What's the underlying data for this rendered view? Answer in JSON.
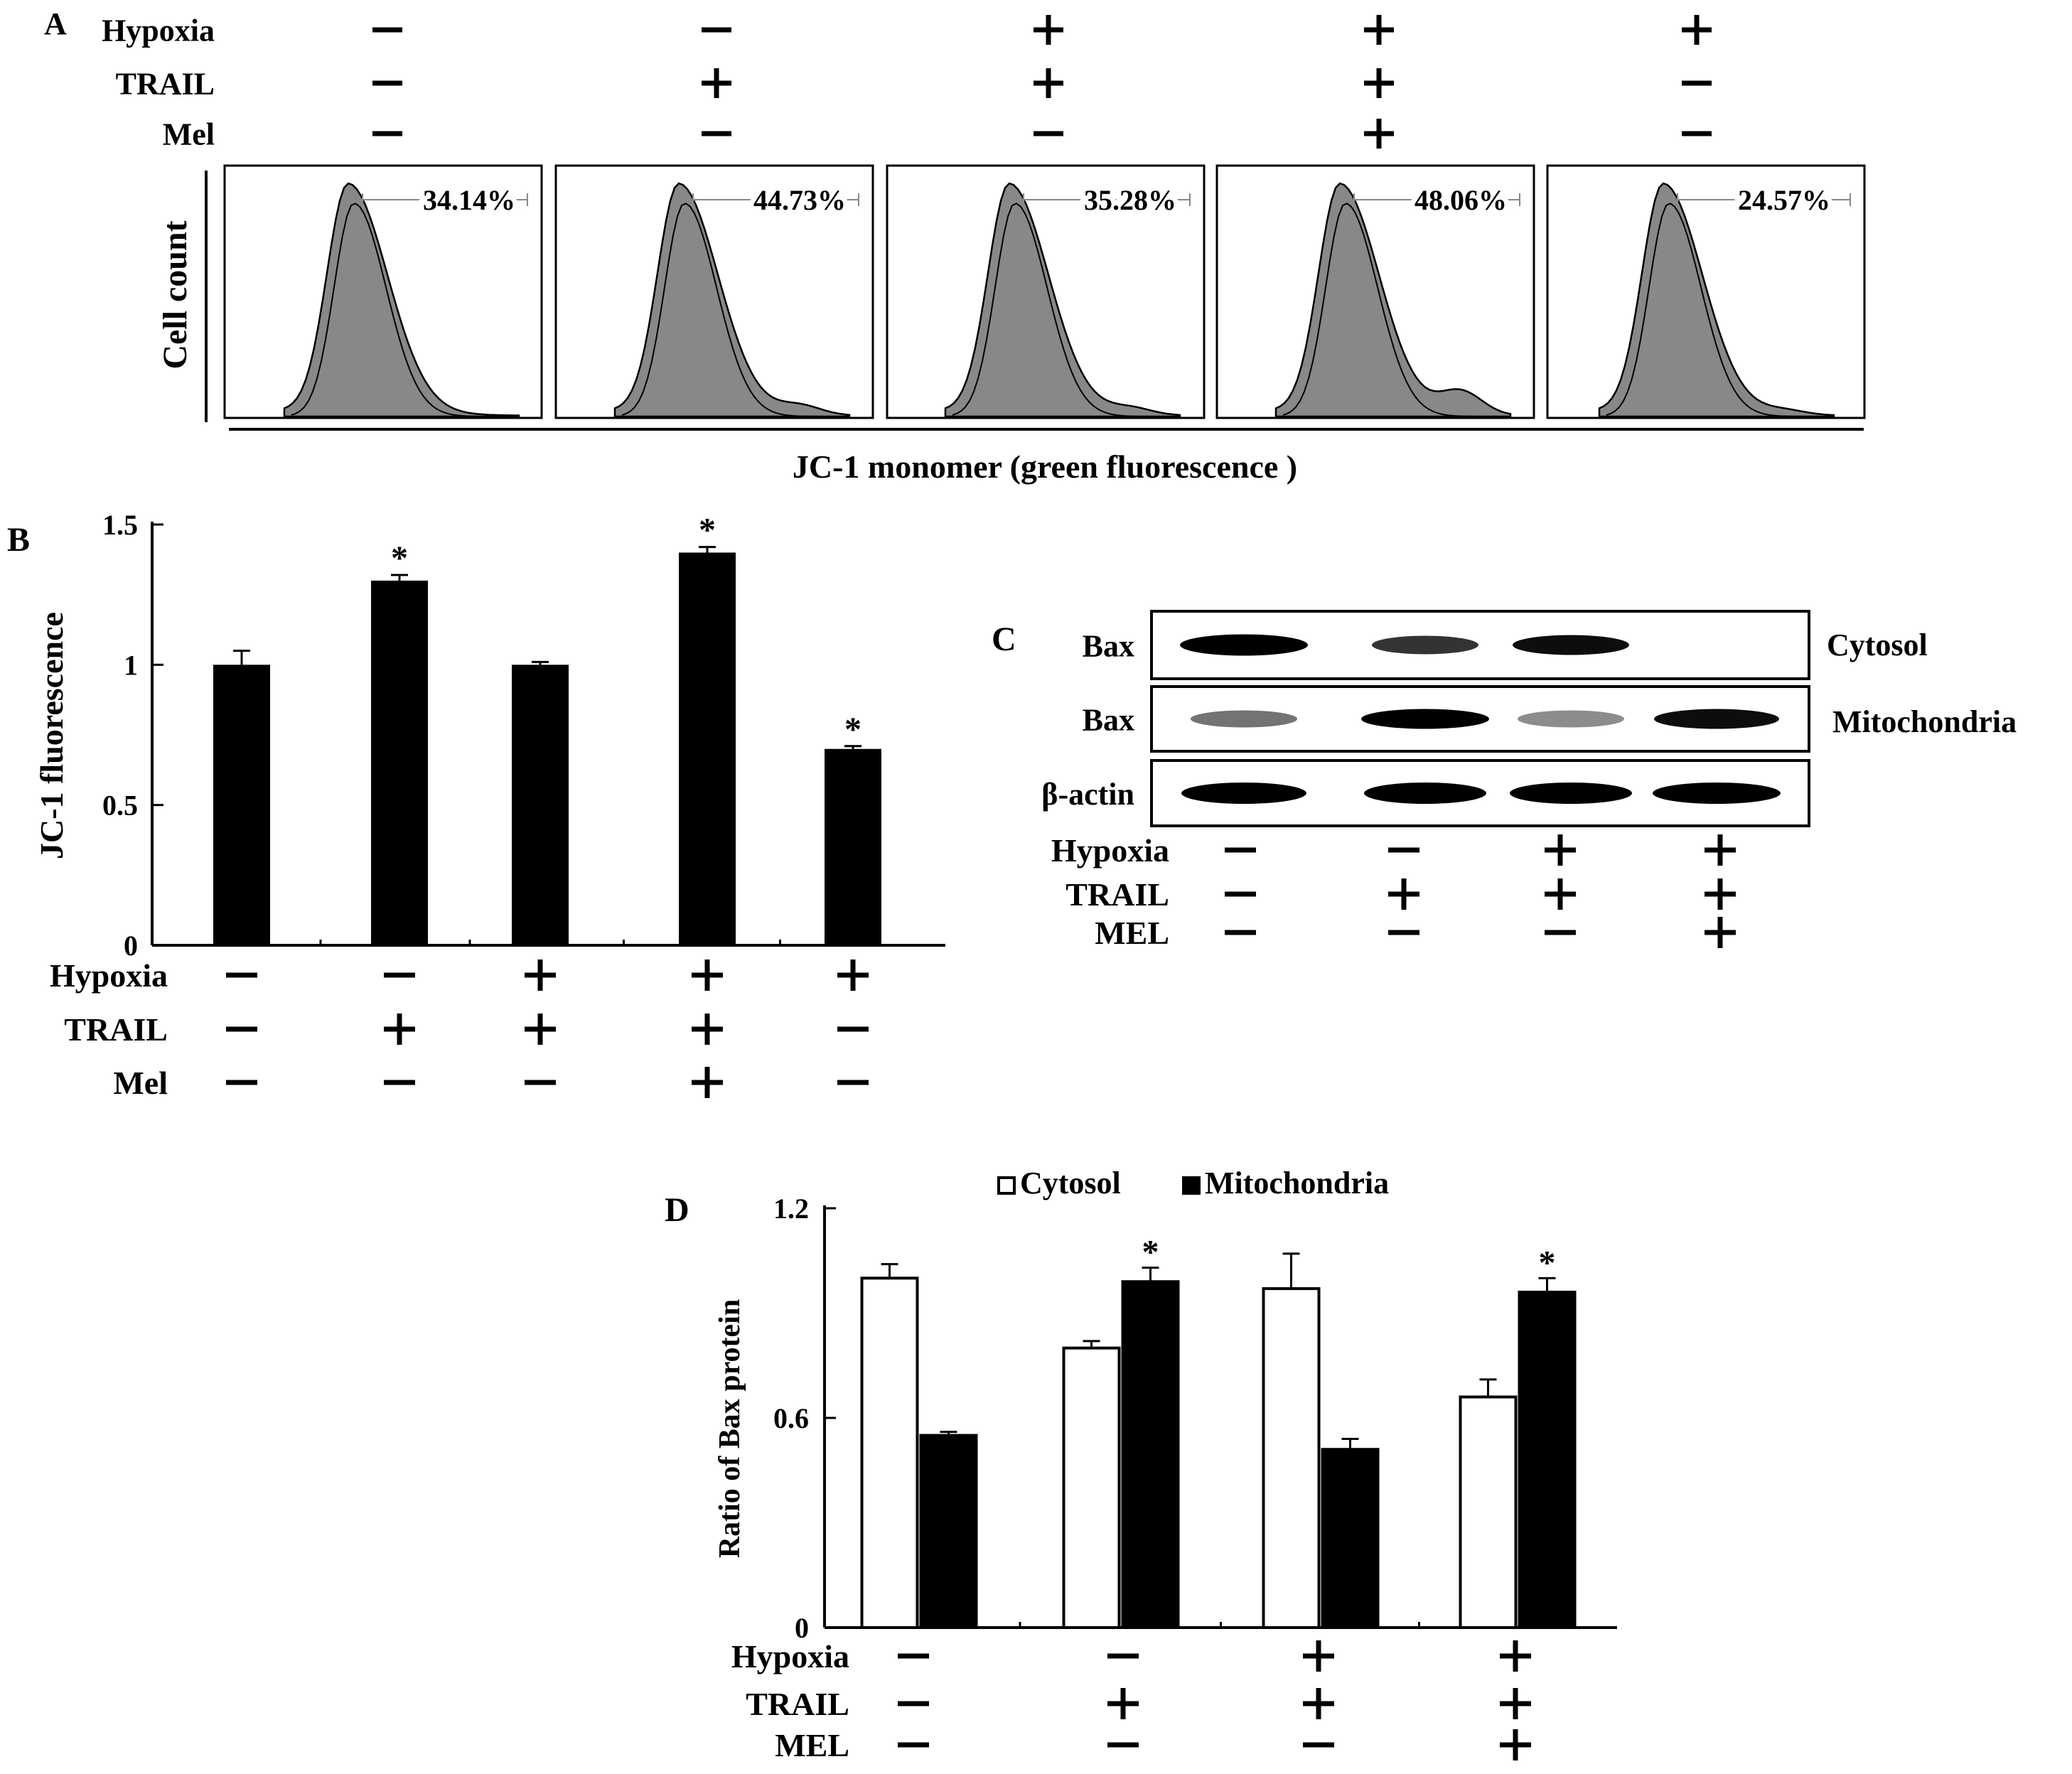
{
  "panels": {
    "A": "A",
    "B": "B",
    "C": "C",
    "D": "D"
  },
  "treatments": {
    "rows_A": [
      "Hypoxia",
      "TRAIL",
      "Mel"
    ],
    "rows_B": [
      "Hypoxia",
      "TRAIL",
      "Mel"
    ],
    "rows_C": [
      "Hypoxia",
      "TRAIL",
      "MEL"
    ],
    "rows_D": [
      "Hypoxia",
      "TRAIL",
      "MEL"
    ],
    "signs_5": [
      [
        "−",
        "−",
        "+",
        "+",
        "+"
      ],
      [
        "−",
        "+",
        "+",
        "+",
        "−"
      ],
      [
        "−",
        "−",
        "−",
        "+",
        "−"
      ]
    ],
    "signs_4": [
      [
        "−",
        "−",
        "+",
        "+"
      ],
      [
        "−",
        "+",
        "+",
        "+"
      ],
      [
        "−",
        "−",
        "−",
        "+"
      ]
    ]
  },
  "panelA": {
    "ylabel": "Cell count",
    "xlabel": "JC-1 monomer (green  fluorescence )",
    "percentages": [
      "34.14%",
      "44.73%",
      "35.28%",
      "48.06%",
      "24.57%"
    ]
  },
  "panelC": {
    "blot_labels": [
      "Bax",
      "Bax",
      "β-actin"
    ],
    "fraction_labels": [
      "Cytosol",
      "Mitochondria"
    ]
  },
  "chart_data": [
    {
      "type": "bar",
      "panel": "B",
      "title": "",
      "xlabel": "",
      "ylabel": "JC-1  fluorescence",
      "ylim": [
        0,
        1.5
      ],
      "yticks": [
        0,
        0.5,
        1,
        1.5
      ],
      "ytick_labels": [
        "0",
        "0.5",
        "1",
        "1.5"
      ],
      "categories": [
        "−/−/−",
        "−/+/−",
        "+/+/−",
        "+/+/+",
        "+/−/−"
      ],
      "values": [
        1.0,
        1.3,
        1.0,
        1.4,
        0.7
      ],
      "errors": [
        0.05,
        0.02,
        0.01,
        0.02,
        0.01
      ],
      "significance": [
        "",
        "*",
        "",
        "*",
        "*"
      ]
    },
    {
      "type": "bar",
      "panel": "D",
      "title": "",
      "xlabel": "",
      "ylabel": "Ratio  of Bax protein",
      "ylim": [
        0,
        1.2
      ],
      "yticks": [
        0,
        0.6,
        1.2
      ],
      "ytick_labels": [
        "0",
        "0.6",
        "1.2"
      ],
      "categories": [
        "−/−/−",
        "−/+/−",
        "+/+/−",
        "+/+/+"
      ],
      "series": [
        {
          "name": "Cytosol",
          "color": "#ffffff",
          "values": [
            1.0,
            0.8,
            0.97,
            0.66
          ],
          "errors": [
            0.04,
            0.02,
            0.1,
            0.05
          ],
          "significance": [
            "",
            "",
            "",
            ""
          ]
        },
        {
          "name": "Mitochondria",
          "color": "#000000",
          "values": [
            0.55,
            0.99,
            0.51,
            0.96
          ],
          "errors": [
            0.01,
            0.04,
            0.03,
            0.04
          ],
          "significance": [
            "",
            "*",
            "",
            "*"
          ]
        }
      ],
      "legend": "top"
    }
  ]
}
